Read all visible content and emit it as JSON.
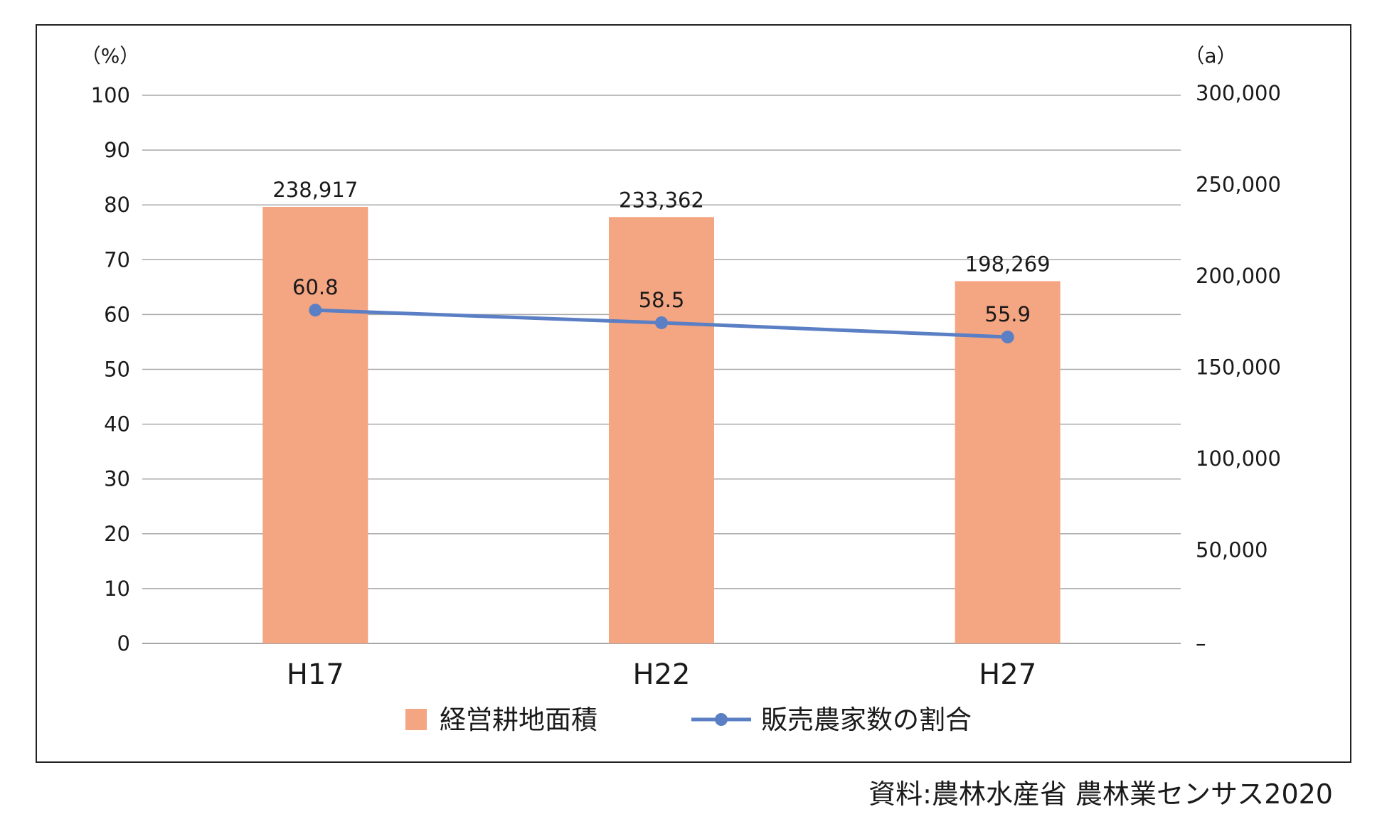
{
  "chart_data": {
    "type": "bar",
    "categories": [
      "H17",
      "H22",
      "H27"
    ],
    "series": [
      {
        "name": "経営耕地面積",
        "type": "bar",
        "axis": "right",
        "color": "#f4a582",
        "values": [
          238917,
          233362,
          198269
        ],
        "labels": [
          "238,917",
          "233,362",
          "198,269"
        ]
      },
      {
        "name": "販売農家数の割合",
        "type": "line",
        "axis": "left",
        "color": "#5b7fc4",
        "values": [
          60.8,
          58.5,
          55.9
        ],
        "labels": [
          "60.8",
          "58.5",
          "55.9"
        ]
      }
    ],
    "left_axis": {
      "unit": "（%）",
      "ylim": [
        0,
        100
      ],
      "ticks": [
        0,
        10,
        20,
        30,
        40,
        50,
        60,
        70,
        80,
        90,
        100
      ],
      "tick_labels": [
        "0",
        "10",
        "20",
        "30",
        "40",
        "50",
        "60",
        "70",
        "80",
        "90",
        "100"
      ]
    },
    "right_axis": {
      "unit": "（a）",
      "ylim": [
        0,
        300000
      ],
      "ticks": [
        0,
        50000,
        100000,
        150000,
        200000,
        250000,
        300000
      ],
      "tick_labels": [
        "–",
        "50,000",
        "100,000",
        "150,000",
        "200,000",
        "250,000",
        "300,000"
      ]
    },
    "grid": true,
    "legend": "bottom"
  },
  "source": "資料:農林水産省 農林業センサス2020"
}
